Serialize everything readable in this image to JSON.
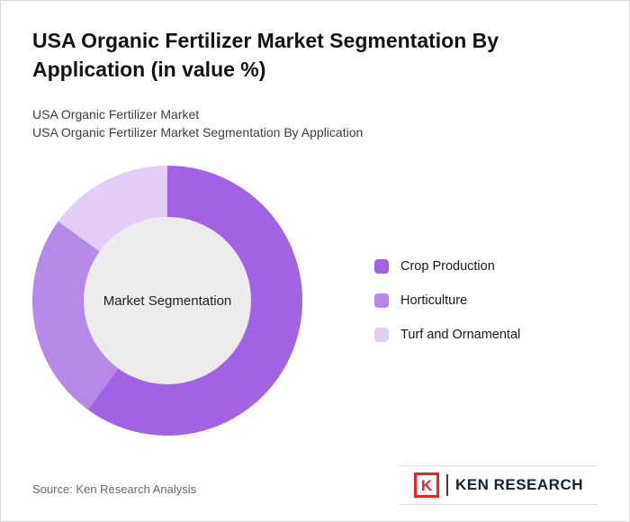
{
  "page": {
    "title": "USA Organic Fertilizer Market Segmentation By Application (in value %)",
    "subtitle_line1": "USA Organic Fertilizer Market",
    "subtitle_line2": "USA Organic Fertilizer Market Segmentation By Application",
    "source": "Source: Ken Research Analysis",
    "brand": {
      "logo_letter": "K",
      "name": "KEN RESEARCH",
      "brand_color": "#e8232a",
      "text_color": "#10213f"
    }
  },
  "chart_data": {
    "type": "pie",
    "subtype": "donut",
    "title": "USA Organic Fertilizer Market Segmentation By Application (in value %)",
    "units": "value %",
    "center_label": "Market Segmentation",
    "legend_position": "right",
    "start_angle_deg": 0,
    "direction": "clockwise",
    "inner_circle_color": "#ececec",
    "segments": [
      {
        "label": "Crop Production",
        "value": 60,
        "color": "#a362e3"
      },
      {
        "label": "Horticulture",
        "value": 25,
        "color": "#b689e8"
      },
      {
        "label": "Turf and Ornamental",
        "value": 15,
        "color": "#e3cdf6"
      }
    ]
  }
}
